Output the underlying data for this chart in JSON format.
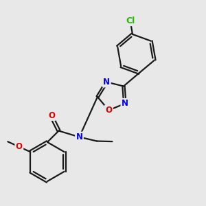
{
  "bg_color": "#e8e8e8",
  "bond_color": "#1a1a1a",
  "bond_width": 1.6,
  "atom_colors": {
    "N": "#0000ee",
    "O": "#dd0000",
    "Cl": "#22bb00",
    "C": "#1a1a1a"
  },
  "font_size": 8.5,
  "fig_size": [
    3.0,
    3.0
  ],
  "dpi": 100
}
